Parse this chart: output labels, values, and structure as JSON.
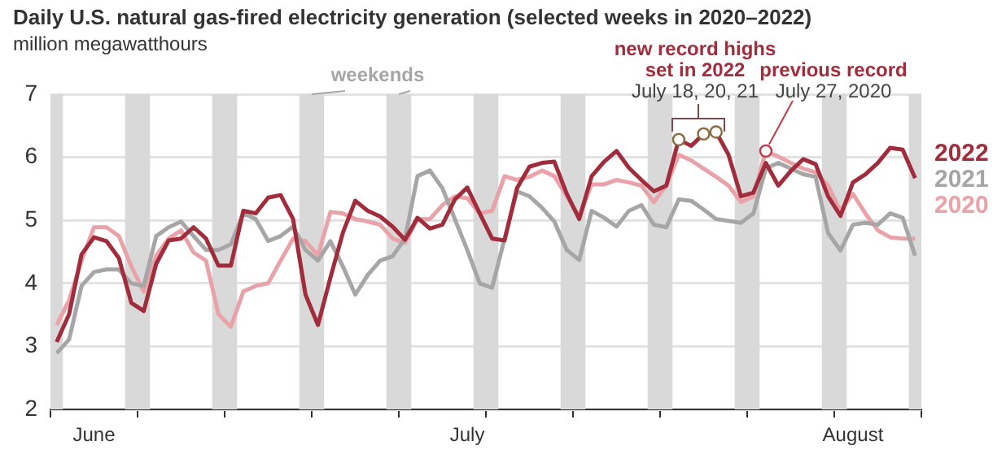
{
  "chart_data": {
    "type": "line",
    "title": "Daily U.S. natural gas-fired electricity generation (selected weeks in 2020–2022)",
    "ylabel": "million megawatthours",
    "x": [
      "--05-29",
      "--05-30",
      "--05-31",
      "--06-01",
      "--06-02",
      "--06-03",
      "--06-04",
      "--06-05",
      "--06-06",
      "--06-07",
      "--06-08",
      "--06-09",
      "--06-10",
      "--06-11",
      "--06-12",
      "--06-13",
      "--06-14",
      "--06-15",
      "--06-16",
      "--06-17",
      "--06-18",
      "--06-19",
      "--06-20",
      "--06-21",
      "--06-22",
      "--06-23",
      "--06-24",
      "--06-25",
      "--06-26",
      "--06-27",
      "--06-28",
      "--06-29",
      "--06-30",
      "--07-01",
      "--07-02",
      "--07-03",
      "--07-04",
      "--07-05",
      "--07-06",
      "--07-07",
      "--07-08",
      "--07-09",
      "--07-10",
      "--07-11",
      "--07-12",
      "--07-13",
      "--07-14",
      "--07-15",
      "--07-16",
      "--07-17",
      "--07-18",
      "--07-19",
      "--07-20",
      "--07-21",
      "--07-22",
      "--07-23",
      "--07-24",
      "--07-25",
      "--07-26",
      "--07-27",
      "--07-28",
      "--07-29",
      "--07-30",
      "--07-31",
      "--08-01",
      "--08-02",
      "--08-03",
      "--08-04",
      "--08-05",
      "--08-06"
    ],
    "series": [
      {
        "name": "2022",
        "color": "#a02c3c",
        "values": [
          3.07,
          3.51,
          4.46,
          4.73,
          4.67,
          4.4,
          3.69,
          3.56,
          4.31,
          4.68,
          4.71,
          4.89,
          4.71,
          4.28,
          4.28,
          5.15,
          5.11,
          5.36,
          5.4,
          5.02,
          3.82,
          3.34,
          4.09,
          4.8,
          5.31,
          5.15,
          5.06,
          4.9,
          4.69,
          5.04,
          4.87,
          4.93,
          5.33,
          5.52,
          5.11,
          4.71,
          4.68,
          5.51,
          5.85,
          5.91,
          5.93,
          5.42,
          5.02,
          5.7,
          5.93,
          6.1,
          5.83,
          5.64,
          5.46,
          5.55,
          6.28,
          6.18,
          6.37,
          6.4,
          6.04,
          5.38,
          5.44,
          5.91,
          5.55,
          5.78,
          5.97,
          5.89,
          5.38,
          5.07,
          5.6,
          5.73,
          5.91,
          6.15,
          6.12,
          5.67
        ]
      },
      {
        "name": "2021",
        "color": "#a6a6a6",
        "values": [
          2.89,
          3.11,
          3.96,
          4.18,
          4.22,
          4.22,
          4.0,
          3.96,
          4.75,
          4.89,
          4.98,
          4.75,
          4.53,
          4.53,
          4.62,
          5.11,
          5.02,
          4.67,
          4.75,
          4.9,
          4.53,
          4.36,
          4.67,
          4.27,
          3.82,
          4.13,
          4.36,
          4.43,
          4.71,
          5.7,
          5.79,
          5.51,
          5.02,
          4.53,
          4.0,
          3.93,
          4.71,
          5.46,
          5.38,
          5.2,
          4.98,
          4.53,
          4.37,
          5.15,
          5.04,
          4.9,
          5.15,
          5.24,
          4.93,
          4.89,
          5.33,
          5.31,
          5.17,
          5.02,
          4.99,
          4.96,
          5.11,
          5.82,
          5.91,
          5.82,
          5.73,
          5.69,
          4.8,
          4.52,
          4.93,
          4.96,
          4.93,
          5.11,
          5.04,
          4.44
        ]
      },
      {
        "name": "2020",
        "color": "#e8a2a8",
        "values": [
          3.34,
          3.73,
          4.36,
          4.89,
          4.89,
          4.75,
          4.27,
          3.87,
          4.44,
          4.71,
          4.84,
          4.49,
          4.36,
          3.51,
          3.31,
          3.87,
          3.96,
          4.0,
          4.36,
          4.71,
          4.67,
          4.44,
          5.13,
          5.11,
          5.02,
          4.98,
          4.93,
          4.71,
          4.64,
          5.02,
          5.02,
          5.24,
          5.38,
          5.35,
          5.11,
          5.15,
          5.7,
          5.64,
          5.69,
          5.79,
          5.7,
          5.38,
          5.06,
          5.57,
          5.57,
          5.64,
          5.6,
          5.55,
          5.29,
          5.55,
          6.04,
          5.95,
          5.82,
          5.69,
          5.55,
          5.29,
          5.38,
          6.1,
          6.01,
          5.91,
          5.82,
          5.76,
          5.55,
          5.15,
          5.42,
          5.11,
          4.84,
          4.73,
          4.71,
          4.71
        ]
      },
      {
        "type": "scatter",
        "x": [
          "--07-18",
          "--07-20",
          "--07-21",
          "--07-25"
        ],
        "values": [
          6.28,
          6.37,
          6.4,
          6.1
        ],
        "colors": [
          "#8c6a3c",
          "#8c6a3c",
          "#8c6a3c",
          "#c0394a"
        ],
        "marker": "circle"
      }
    ],
    "xlim": [
      "--05-28T12:00",
      "--08-06T12:00"
    ],
    "xticks": [
      {
        "value": "--05-28T12:00",
        "label": null
      },
      {
        "value": "--06-01",
        "label": "June"
      },
      {
        "value": "--06-04T12:00",
        "label": null
      },
      {
        "value": "--06-11T12:00",
        "label": null
      },
      {
        "value": "--06-18T12:00",
        "label": null
      },
      {
        "value": "--06-25T12:00",
        "label": null
      },
      {
        "value": "--07-01",
        "label": "July"
      },
      {
        "value": "--07-02T12:00",
        "label": null
      },
      {
        "value": "--07-09T12:00",
        "label": null
      },
      {
        "value": "--07-16T12:00",
        "label": null
      },
      {
        "value": "--07-23T12:00",
        "label": null
      },
      {
        "value": "--07-30T12:00",
        "label": null
      },
      {
        "value": "--08-01",
        "label": "August"
      },
      {
        "value": "--08-06T12:00",
        "label": null
      }
    ],
    "ylim": [
      2,
      7
    ],
    "yticks": [
      2,
      3,
      4,
      5,
      6,
      7
    ],
    "grid": "y",
    "legend": "right",
    "line_style": "solid",
    "marker": "none",
    "bands": [
      {
        "axis": "x",
        "from": "--05-28T12:00",
        "to": "--05-29T12:00",
        "color": "#d9d9d9"
      },
      {
        "axis": "x",
        "from": "--06-03T12:00",
        "to": "--06-05T12:00",
        "color": "#d9d9d9"
      },
      {
        "axis": "x",
        "from": "--06-10T12:00",
        "to": "--06-12T12:00",
        "color": "#d9d9d9"
      },
      {
        "axis": "x",
        "from": "--06-17T12:00",
        "to": "--06-19T12:00",
        "color": "#d9d9d9"
      },
      {
        "axis": "x",
        "from": "--06-24T12:00",
        "to": "--06-26T12:00",
        "color": "#d9d9d9"
      },
      {
        "axis": "x",
        "from": "--07-01T12:00",
        "to": "--07-03T12:00",
        "color": "#d9d9d9"
      },
      {
        "axis": "x",
        "from": "--07-08T12:00",
        "to": "--07-10T12:00",
        "color": "#d9d9d9"
      },
      {
        "axis": "x",
        "from": "--07-15T12:00",
        "to": "--07-17T12:00",
        "color": "#d9d9d9"
      },
      {
        "axis": "x",
        "from": "--07-22T12:00",
        "to": "--07-24T12:00",
        "color": "#d9d9d9"
      },
      {
        "axis": "x",
        "from": "--07-29T12:00",
        "to": "--07-31T12:00",
        "color": "#d9d9d9"
      },
      {
        "axis": "x",
        "from": "--08-05T12:00",
        "to": "--08-06T12:00",
        "color": "#d9d9d9"
      }
    ],
    "annotations": [
      {
        "text": "weekends",
        "x": "--06-18T12:00",
        "y": 7
      },
      "new record highs set in 2022",
      "July 18, 20, 21",
      {
        "text": "previous record",
        "x": "--07-25",
        "y": 6.1
      },
      "July 27, 2020"
    ]
  }
}
